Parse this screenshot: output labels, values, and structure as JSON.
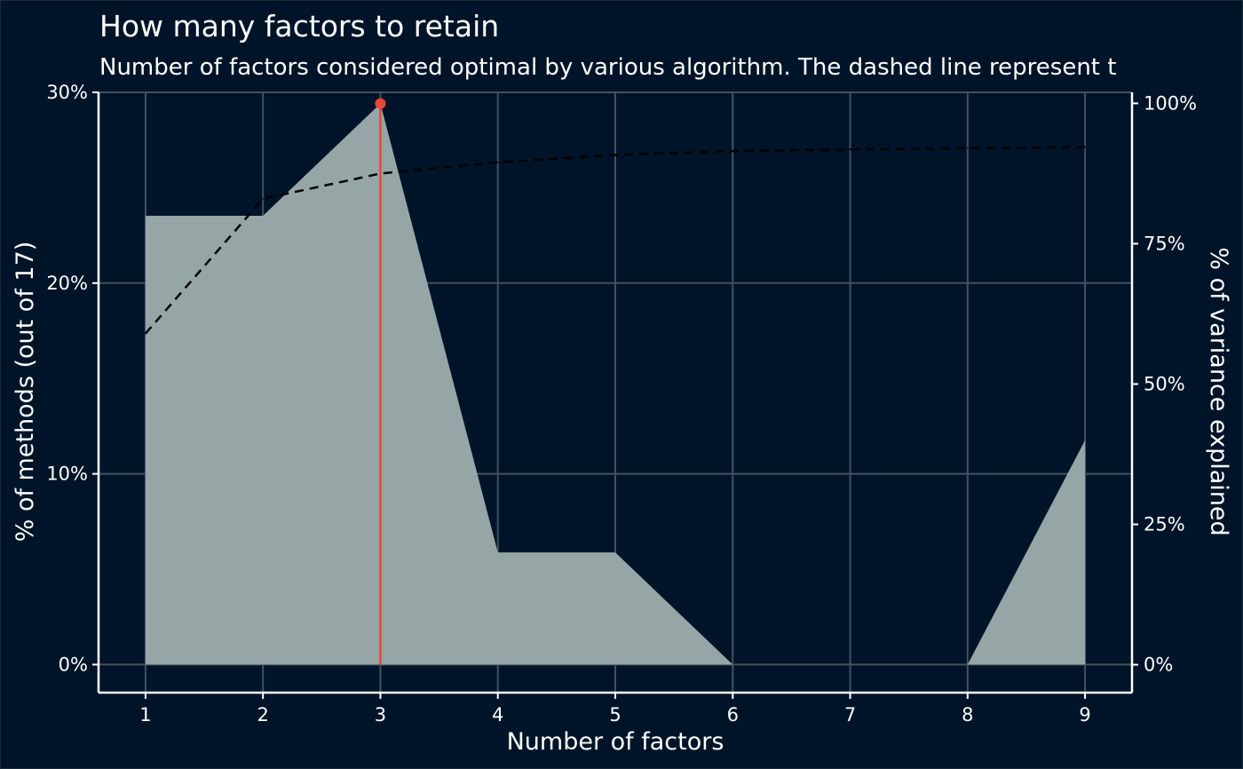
{
  "chart_data": {
    "type": "area",
    "title": "How many factors to retain",
    "subtitle": "Number of factors considered optimal by various algorithm. The dashed line represent t",
    "xlabel": "Number of factors",
    "ylabel": "% of methods (out of 17)",
    "y2label": "% of variance explained",
    "x": [
      1,
      2,
      3,
      4,
      5,
      6,
      7,
      8,
      9
    ],
    "x_ticks": [
      "1",
      "2",
      "3",
      "4",
      "5",
      "6",
      "7",
      "8",
      "9"
    ],
    "y_ticks": [
      "0%",
      "10%",
      "20%",
      "30%"
    ],
    "y2_ticks": [
      "0%",
      "25%",
      "50%",
      "75%",
      "100%"
    ],
    "xlim": [
      0.6,
      9.4
    ],
    "ylim": [
      -0.0147,
      0.3
    ],
    "y2lim": [
      -0.0497,
      1.0196
    ],
    "grid": true,
    "series": [
      {
        "style": "area",
        "color": "#96a6a6",
        "values": [
          0.2353,
          0.2353,
          0.2941,
          0.0588,
          0.0588,
          0.0,
          0.0,
          0.0,
          0.1176
        ]
      },
      {
        "style": "dashed-line",
        "axis": "right",
        "color": "#000000",
        "values": [
          0.59,
          0.83,
          0.875,
          0.895,
          0.908,
          0.915,
          0.918,
          0.92,
          0.922
        ]
      }
    ],
    "highlight": {
      "x": 3,
      "value": 0.2941,
      "color": "#e5493a"
    },
    "colors": {
      "background": "#001429",
      "grid": "#45515d",
      "axis": "#ffffff",
      "text": "#ffffff"
    }
  }
}
